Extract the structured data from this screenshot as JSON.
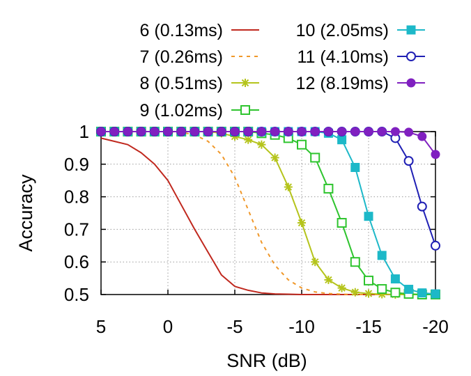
{
  "chart_data": {
    "type": "line",
    "xlabel": "SNR (dB)",
    "ylabel": "Accuracy",
    "xlim": [
      5,
      -20
    ],
    "ylim": [
      0.5,
      1
    ],
    "xticks": [
      5,
      0,
      -5,
      -10,
      -15,
      -20
    ],
    "xtick_labels": [
      "5",
      "0",
      "-5",
      "-10",
      "-15",
      "-20"
    ],
    "yticks": [
      0.5,
      0.6,
      0.7,
      0.8,
      0.9,
      1
    ],
    "ytick_labels": [
      "0.5",
      "0.6",
      "0.7",
      "0.8",
      "0.9",
      "1"
    ],
    "grid": true,
    "legend_position": "top",
    "x": [
      5,
      4,
      3,
      2,
      1,
      0,
      -1,
      -2,
      -3,
      -4,
      -5,
      -6,
      -7,
      -8,
      -9,
      -10,
      -11,
      -12,
      -13,
      -14,
      -15,
      -16,
      -17,
      -18,
      -19,
      -20
    ],
    "series": [
      {
        "name": "6 (0.13ms)",
        "color": "#c0281e",
        "dash": "solid",
        "marker": "none",
        "values": [
          0.98,
          0.97,
          0.96,
          0.935,
          0.9,
          0.85,
          0.775,
          0.7,
          0.63,
          0.56,
          0.525,
          0.513,
          0.505,
          0.502,
          0.501,
          0.5,
          0.5,
          0.5,
          0.5,
          0.5,
          0.5,
          0.5,
          0.5,
          0.5,
          0.5,
          0.5
        ]
      },
      {
        "name": "7 (0.26ms)",
        "color": "#f0982a",
        "dash": "dashed",
        "marker": "none",
        "values": [
          1,
          1,
          1,
          1,
          1,
          1,
          0.998,
          0.99,
          0.97,
          0.93,
          0.86,
          0.76,
          0.66,
          0.59,
          0.545,
          0.52,
          0.508,
          0.503,
          0.501,
          0.5,
          0.5,
          0.5,
          0.5,
          0.5,
          0.5,
          0.5
        ]
      },
      {
        "name": "8 (0.51ms)",
        "color": "#b5c41c",
        "dash": "solid",
        "marker": "star",
        "values": [
          1,
          1,
          1,
          1,
          1,
          1,
          1,
          1,
          1,
          0.995,
          0.985,
          0.975,
          0.96,
          0.92,
          0.83,
          0.72,
          0.6,
          0.545,
          0.52,
          0.507,
          0.503,
          0.501,
          0.5,
          0.5,
          0.5,
          0.5
        ]
      },
      {
        "name": "9 (1.02ms)",
        "color": "#2ec42e",
        "dash": "solid",
        "marker": "square-open",
        "values": [
          1,
          1,
          1,
          1,
          1,
          1,
          1,
          1,
          1,
          1,
          1,
          1,
          0.995,
          0.99,
          0.98,
          0.96,
          0.92,
          0.825,
          0.72,
          0.6,
          0.543,
          0.517,
          0.506,
          0.502,
          0.5,
          0.5
        ]
      },
      {
        "name": "10 (2.05ms)",
        "color": "#1db8c8",
        "dash": "solid",
        "marker": "square-filled",
        "values": [
          1,
          1,
          1,
          1,
          1,
          1,
          1,
          1,
          1,
          1,
          1,
          1,
          1,
          1,
          1,
          1,
          1,
          0.995,
          0.975,
          0.89,
          0.74,
          0.62,
          0.548,
          0.516,
          0.505,
          0.502
        ]
      },
      {
        "name": "11 (4.10ms)",
        "color": "#1f1fb4",
        "dash": "solid",
        "marker": "circle-open",
        "values": [
          1,
          1,
          1,
          1,
          1,
          1,
          1,
          1,
          1,
          1,
          1,
          1,
          1,
          1,
          1,
          1,
          1,
          1,
          1,
          1,
          1,
          1,
          0.98,
          0.91,
          0.77,
          0.65
        ]
      },
      {
        "name": "12 (8.19ms)",
        "color": "#8020c0",
        "dash": "solid",
        "marker": "circle-filled",
        "values": [
          1,
          1,
          1,
          1,
          1,
          1,
          1,
          1,
          1,
          1,
          1,
          1,
          1,
          1,
          1,
          1,
          1,
          1,
          1,
          1,
          1,
          1,
          1,
          0.998,
          0.985,
          0.93
        ]
      }
    ]
  }
}
